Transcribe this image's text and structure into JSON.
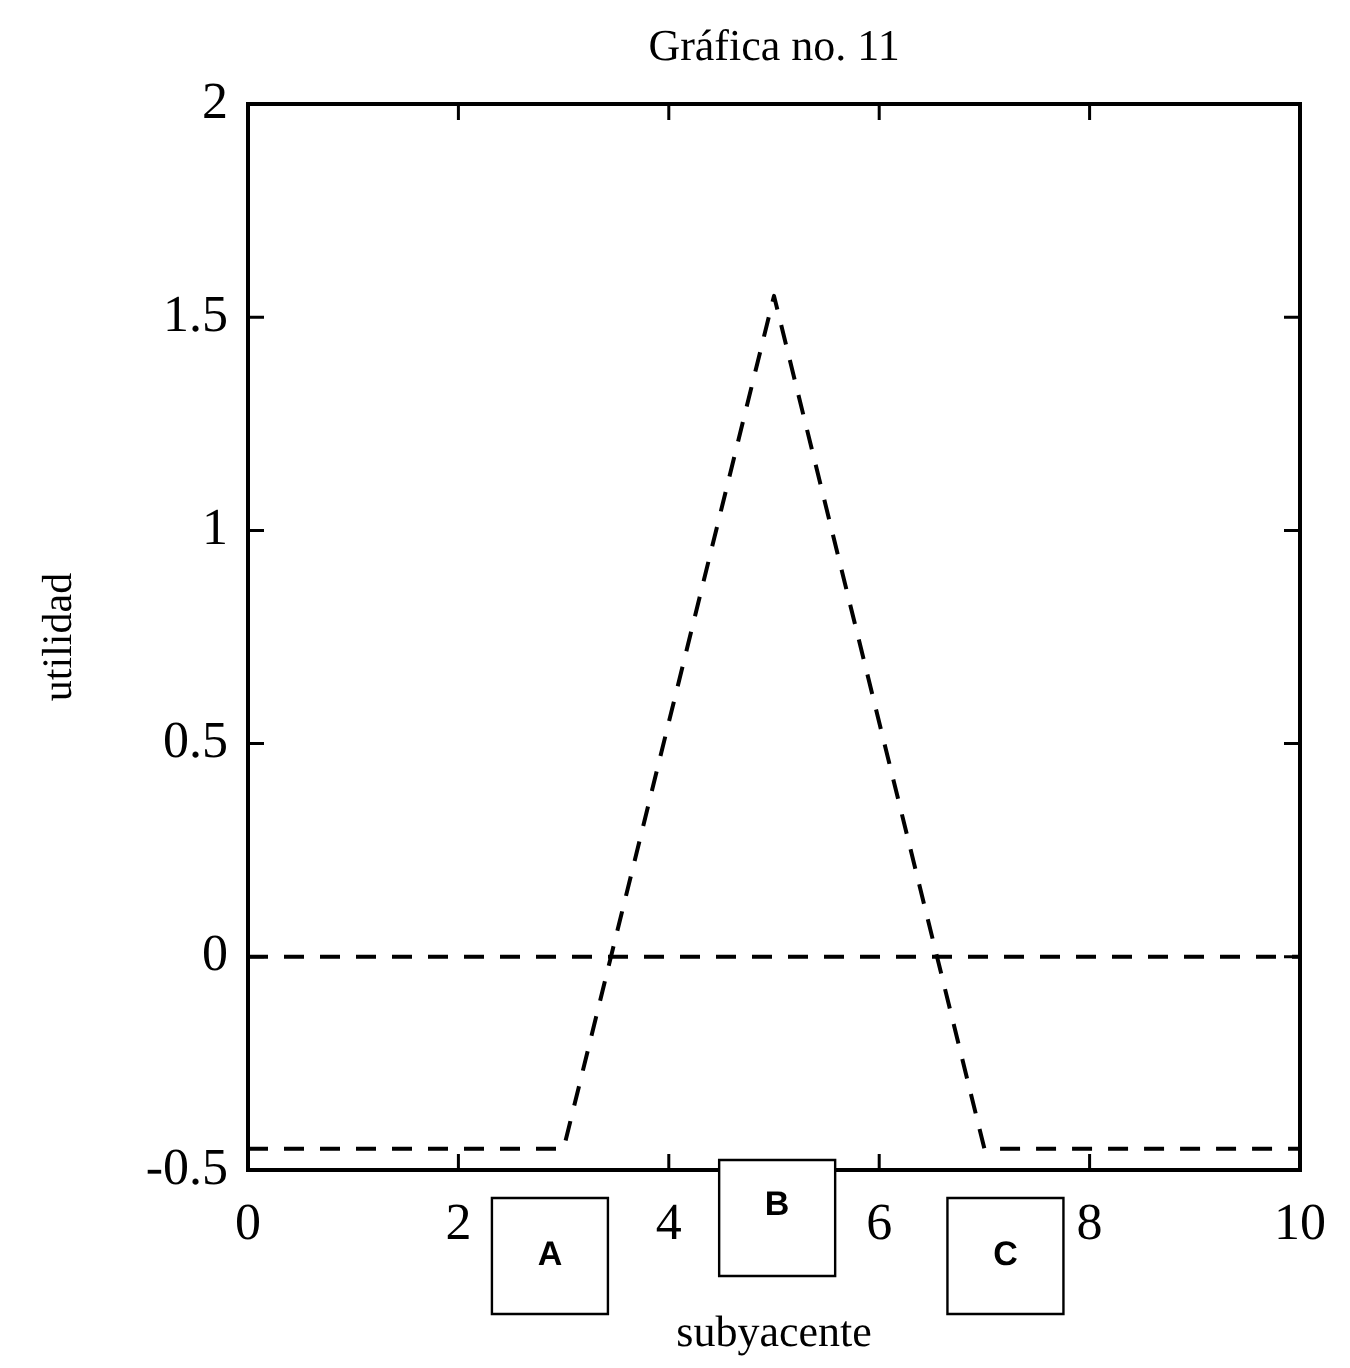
{
  "chart_data": {
    "type": "line",
    "title": "Gráfica no. 11",
    "xlabel": "subyacente",
    "ylabel": "utilidad",
    "x": [
      0,
      3,
      5,
      7,
      10
    ],
    "series": [
      {
        "color": "#000000",
        "values": [
          -0.45,
          -0.45,
          1.55,
          -0.45,
          -0.45
        ],
        "line_style": "dashed"
      }
    ],
    "xlim": [
      0,
      10
    ],
    "xticks": [
      0,
      2,
      4,
      6,
      8,
      10
    ],
    "ylim": [
      -0.5,
      2
    ],
    "yticks": [
      -0.5,
      0,
      0.5,
      1,
      1.5,
      2
    ],
    "ref_lines": [
      {
        "axis": "y",
        "value": 0,
        "color": "#000000",
        "line_style": "dashed"
      }
    ],
    "annotations": [
      "A",
      "B",
      "C"
    ],
    "grid": false,
    "legend": false,
    "marker": "none"
  }
}
